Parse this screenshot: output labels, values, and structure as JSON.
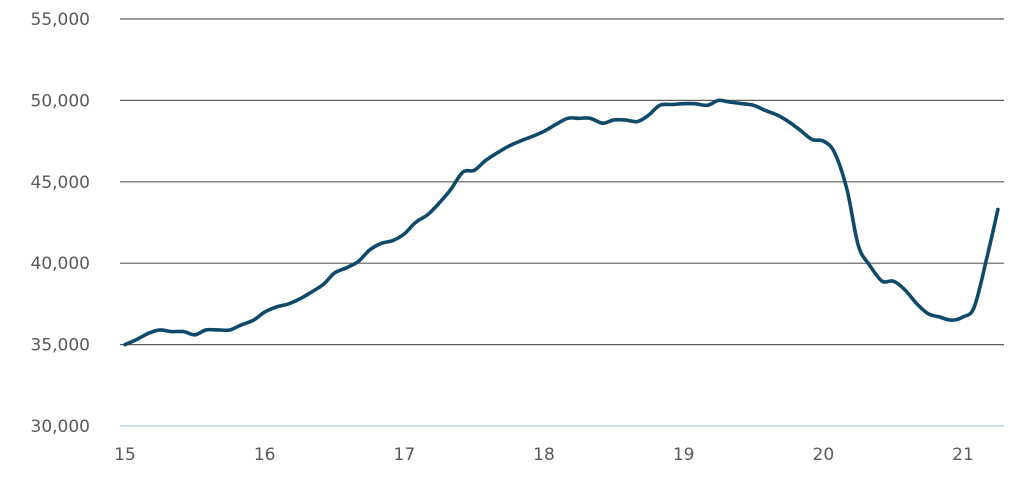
{
  "chart_data": {
    "type": "line",
    "title": "",
    "xlabel": "",
    "ylabel": "",
    "x_ticks": [
      "15",
      "16",
      "17",
      "18",
      "19",
      "20",
      "21"
    ],
    "x_tick_values": [
      15,
      16,
      17,
      18,
      19,
      20,
      21
    ],
    "y_ticks": [
      "30,000",
      "35,000",
      "40,000",
      "45,000",
      "50,000",
      "55,000"
    ],
    "y_tick_values": [
      30000,
      35000,
      40000,
      45000,
      50000,
      55000
    ],
    "xlim": [
      15,
      21.3
    ],
    "ylim": [
      30000,
      55000
    ],
    "grid": "horizontal",
    "legend": "none",
    "colors": {
      "series": "#0f4a6b",
      "grid": "#5c5c5c",
      "baseline": "#b9d3e6"
    },
    "series": [
      {
        "x": [
          15.0,
          15.08,
          15.17,
          15.25,
          15.33,
          15.42,
          15.5,
          15.58,
          15.67,
          15.75,
          15.83,
          15.92,
          16.0,
          16.08,
          16.17,
          16.25,
          16.33,
          16.42,
          16.5,
          16.58,
          16.67,
          16.75,
          16.83,
          16.92,
          17.0,
          17.08,
          17.17,
          17.25,
          17.33,
          17.42,
          17.5,
          17.58,
          17.67,
          17.75,
          17.83,
          17.92,
          18.0,
          18.08,
          18.17,
          18.25,
          18.33,
          18.42,
          18.5,
          18.58,
          18.67,
          18.75,
          18.83,
          18.92,
          19.0,
          19.08,
          19.17,
          19.25,
          19.33,
          19.42,
          19.5,
          19.58,
          19.67,
          19.75,
          19.83,
          19.92,
          20.0,
          20.08,
          20.17,
          20.25,
          20.33,
          20.42,
          20.5,
          20.58,
          20.67,
          20.75,
          20.83,
          20.92,
          21.0,
          21.08,
          21.17,
          21.25
        ],
        "values": [
          35000,
          35300,
          35700,
          35900,
          35800,
          35800,
          35600,
          35900,
          35900,
          35900,
          36200,
          36500,
          37000,
          37300,
          37500,
          37800,
          38200,
          38700,
          39400,
          39700,
          40100,
          40800,
          41200,
          41400,
          41800,
          42500,
          43000,
          43700,
          44500,
          45600,
          45700,
          46300,
          46800,
          47200,
          47500,
          47800,
          48100,
          48500,
          48900,
          48900,
          48900,
          48600,
          48800,
          48800,
          48700,
          49100,
          49700,
          49750,
          49800,
          49800,
          49700,
          50000,
          49900,
          49800,
          49700,
          49400,
          49100,
          48700,
          48200,
          47600,
          47500,
          46800,
          44500,
          41100,
          39900,
          38900,
          38900,
          38400,
          37500,
          36900,
          36700,
          36500,
          36700,
          37300,
          40300,
          43300
        ]
      }
    ]
  }
}
